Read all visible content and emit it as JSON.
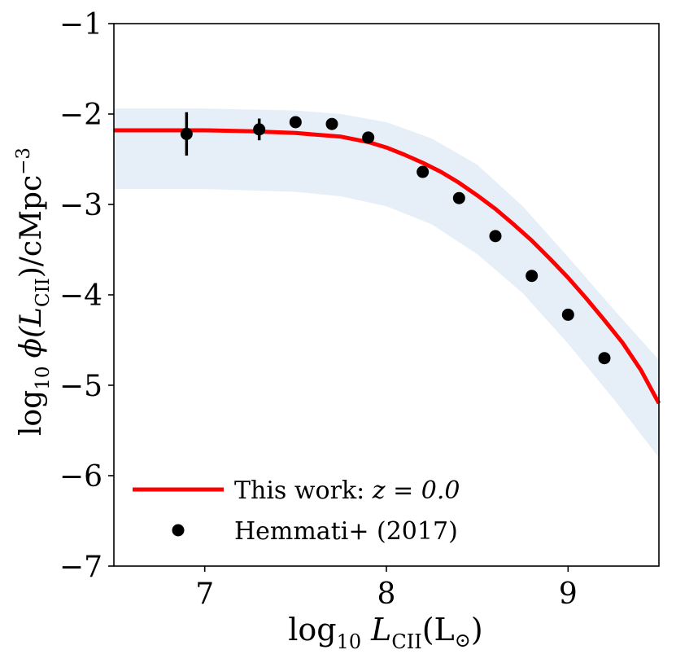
{
  "chart_data": {
    "type": "line",
    "xlabel": {
      "main": "log",
      "sub": "10",
      "var": "L",
      "varsub": "CII",
      "tail": "(L",
      "sun": "⊙",
      "close": ")"
    },
    "ylabel": {
      "main": "log",
      "sub": "10",
      "phi": "ϕ(",
      "var": "L",
      "varsub": "CII",
      "tail": ")/cMpc",
      "sup": "−3"
    },
    "xlim": [
      6.5,
      9.5
    ],
    "ylim": [
      -7,
      -1
    ],
    "xticks": [
      7,
      8,
      9
    ],
    "yticks": [
      -1,
      -2,
      -3,
      -4,
      -5,
      -6,
      -7
    ],
    "xtick_labels": [
      "7",
      "8",
      "9"
    ],
    "ytick_labels": [
      "−1",
      "−2",
      "−3",
      "−4",
      "−5",
      "−6",
      "−7"
    ],
    "series": [
      {
        "name": "This work: z = 0.0",
        "legend_label": "This work: ",
        "legend_math": "z = 0.0",
        "kind": "line",
        "color": "#ff0000",
        "x": [
          6.5,
          6.75,
          7.0,
          7.25,
          7.5,
          7.75,
          7.9,
          8.0,
          8.1,
          8.2,
          8.3,
          8.4,
          8.5,
          8.6,
          8.7,
          8.8,
          8.9,
          9.0,
          9.1,
          9.2,
          9.3,
          9.4,
          9.5
        ],
        "y": [
          -2.18,
          -2.18,
          -2.18,
          -2.19,
          -2.21,
          -2.25,
          -2.31,
          -2.37,
          -2.45,
          -2.54,
          -2.64,
          -2.76,
          -2.9,
          -3.05,
          -3.22,
          -3.4,
          -3.6,
          -3.81,
          -4.04,
          -4.28,
          -4.53,
          -4.83,
          -5.2
        ]
      },
      {
        "name": "Hemmati+ (2017)",
        "legend_label": "Hemmati+ (2017)",
        "kind": "scatter",
        "color": "#000000",
        "x": [
          6.9,
          7.3,
          7.5,
          7.7,
          7.9,
          8.2,
          8.4,
          8.6,
          8.8,
          9.0,
          9.2
        ],
        "y": [
          -2.22,
          -2.17,
          -2.09,
          -2.11,
          -2.26,
          -2.64,
          -2.93,
          -3.35,
          -3.79,
          -4.22,
          -4.7
        ],
        "yerr": [
          0.24,
          0.12,
          0.03,
          0.03,
          0.03,
          0.03,
          0.03,
          0.03,
          0.03,
          0.03,
          0.06
        ]
      }
    ],
    "band": {
      "name": "uncertainty band",
      "color": "#e6eef7",
      "x": [
        6.5,
        7.0,
        7.5,
        7.75,
        8.0,
        8.25,
        8.5,
        8.75,
        9.0,
        9.25,
        9.5
      ],
      "upper": [
        -1.94,
        -1.94,
        -1.96,
        -2.0,
        -2.09,
        -2.27,
        -2.56,
        -3.02,
        -3.58,
        -4.16,
        -4.72
      ],
      "lower": [
        -2.83,
        -2.83,
        -2.86,
        -2.91,
        -3.02,
        -3.22,
        -3.55,
        -3.98,
        -4.54,
        -5.15,
        -5.8
      ]
    },
    "legend_position": "lower-left"
  }
}
